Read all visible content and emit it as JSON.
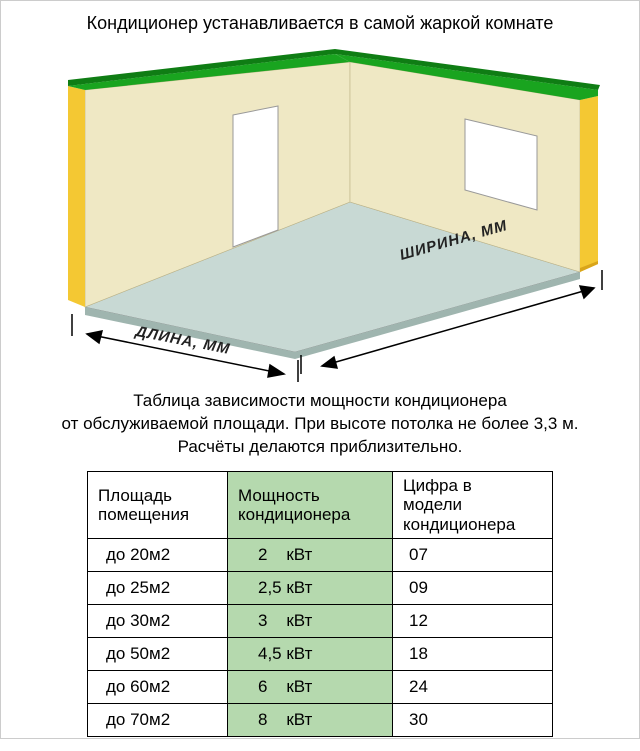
{
  "title": "Кондиционер устанавливается в самой жаркой комнате",
  "diagram": {
    "width_label": "ШИРИНА, ММ",
    "length_label": "ДЛИНА, ММ",
    "colors": {
      "wall_front": "#efe8c4",
      "wall_side": "#f4c833",
      "wall_side_dark": "#d9a51a",
      "cap_top": "#19a41f",
      "cap_top_dark": "#0f7d14",
      "floor": "#c8d9d4",
      "floor_edge": "#9fb5af",
      "opening": "#ffffff"
    }
  },
  "subtitle_line1": "Таблица зависимости мощности кондиционера",
  "subtitle_line2": "от обслуживаемой площади. При высоте потолка не более 3,3 м.",
  "subtitle_line3": "Расчёты делаются приблизительно.",
  "table": {
    "header_bg": "#ffffff",
    "power_col_bg": "#b5d9ae",
    "columns": {
      "area": "Площадь\nпомещения",
      "power": "Мощность\nкондиционера",
      "model": "Цифра в\nмодели\nкондиционера"
    },
    "rows": [
      {
        "area": "до 20м2",
        "power": "2    кВт",
        "model": "07"
      },
      {
        "area": "до 25м2",
        "power": "2,5 кВт",
        "model": "09"
      },
      {
        "area": "до 30м2",
        "power": "3    кВт",
        "model": "12"
      },
      {
        "area": "до 50м2",
        "power": "4,5 кВт",
        "model": "18"
      },
      {
        "area": "до 60м2",
        "power": "6    кВт",
        "model": "24"
      },
      {
        "area": "до 70м2",
        "power": "8    кВт",
        "model": "30"
      }
    ]
  }
}
